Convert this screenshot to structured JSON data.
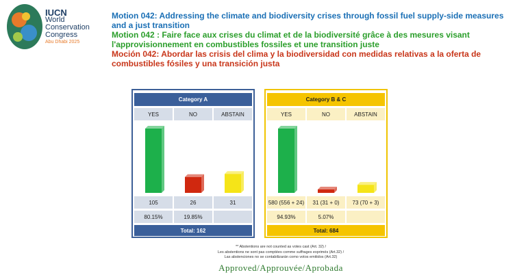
{
  "logo": {
    "brand": "IUCN",
    "line1": "World",
    "line2": "Conservation",
    "line3": "Congress",
    "place": "Abu Dhabi 2025"
  },
  "header": {
    "title_en": "Motion 042: Addressing the climate and biodiversity crises through fossil fuel supply-side measures and a just transition",
    "title_fr": "Motion 042 : Faire face aux crises du climat et de la biodiversité grâce à des mesures visant l'approvisionnement en combustibles fossiles et une transition juste",
    "title_es": "Moción 042: Abordar las crisis del clima y la biodiversidad con medidas relativas a la oferta de combustibles fósiles y una transición justa"
  },
  "panels": [
    {
      "title": "Category A",
      "headers": [
        "YES",
        "NO",
        "ABSTAIN"
      ],
      "values": [
        105,
        26,
        31
      ],
      "percents": [
        "80.15%",
        "19.85%"
      ],
      "total": "Total: 162",
      "colors": [
        "#1db04b",
        "#d0280f",
        "#f5e418"
      ]
    },
    {
      "title": "Category B & C",
      "headers": [
        "YES",
        "NO",
        "ABSTAIN"
      ],
      "values": [
        580,
        31,
        73
      ],
      "value_labels": [
        "580 (556 + 24)",
        "31 (31 + 0)",
        "73 (70 + 3)"
      ],
      "percents": [
        "94.93%",
        "5.07%"
      ],
      "total": "Total: 684",
      "colors": [
        "#1db04b",
        "#d0280f",
        "#f5e418"
      ]
    }
  ],
  "notes": [
    "** Abstentions are not counted as votes cast (Art. 32) /",
    "Les abstentions ne sont pas comptées comme suffrages exprimés (Art.32) /",
    "Las abstenciones no se contabilizarán como votos emitidos (Art.32)"
  ],
  "result": "Approved/Approuvée/Aprobada"
}
